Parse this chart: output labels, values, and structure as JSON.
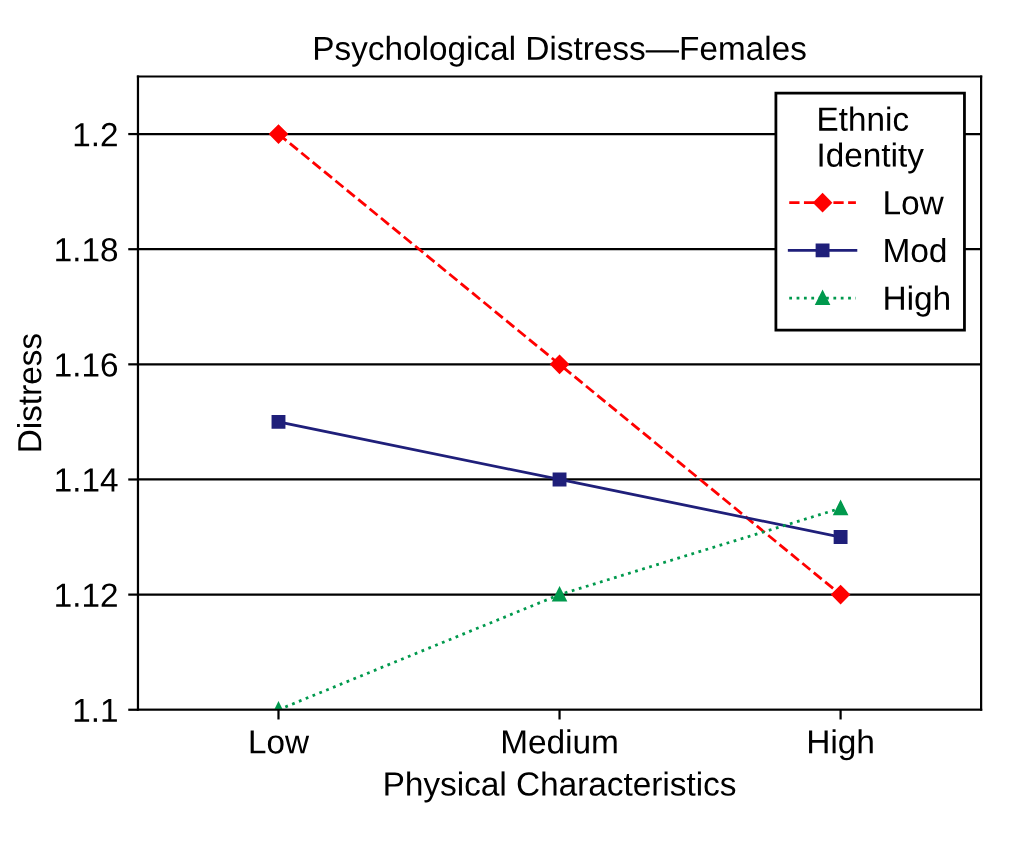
{
  "chart_data": {
    "type": "line",
    "title": "Psychological Distress—Females",
    "xlabel": "Physical Characteristics",
    "ylabel": "Distress",
    "legend_title": "Ethnic\nIdentity",
    "categories": [
      "Low",
      "Medium",
      "High"
    ],
    "series": [
      {
        "name": "Low",
        "color": "#ff0000",
        "values": [
          1.2,
          1.16,
          1.12
        ],
        "marker": "diamond",
        "line_style": "dashed"
      },
      {
        "name": "Mod",
        "color": "#1f1f7a",
        "values": [
          1.15,
          1.14,
          1.13
        ],
        "marker": "square",
        "line_style": "solid"
      },
      {
        "name": "High",
        "color": "#00994d",
        "values": [
          1.1,
          1.12,
          1.135
        ],
        "marker": "triangle",
        "line_style": "dotted"
      }
    ],
    "ylim": [
      1.1,
      1.21
    ],
    "yticks": [
      1.1,
      1.12,
      1.14,
      1.16,
      1.18,
      1.2
    ],
    "grid": "y",
    "legend": "top right"
  }
}
